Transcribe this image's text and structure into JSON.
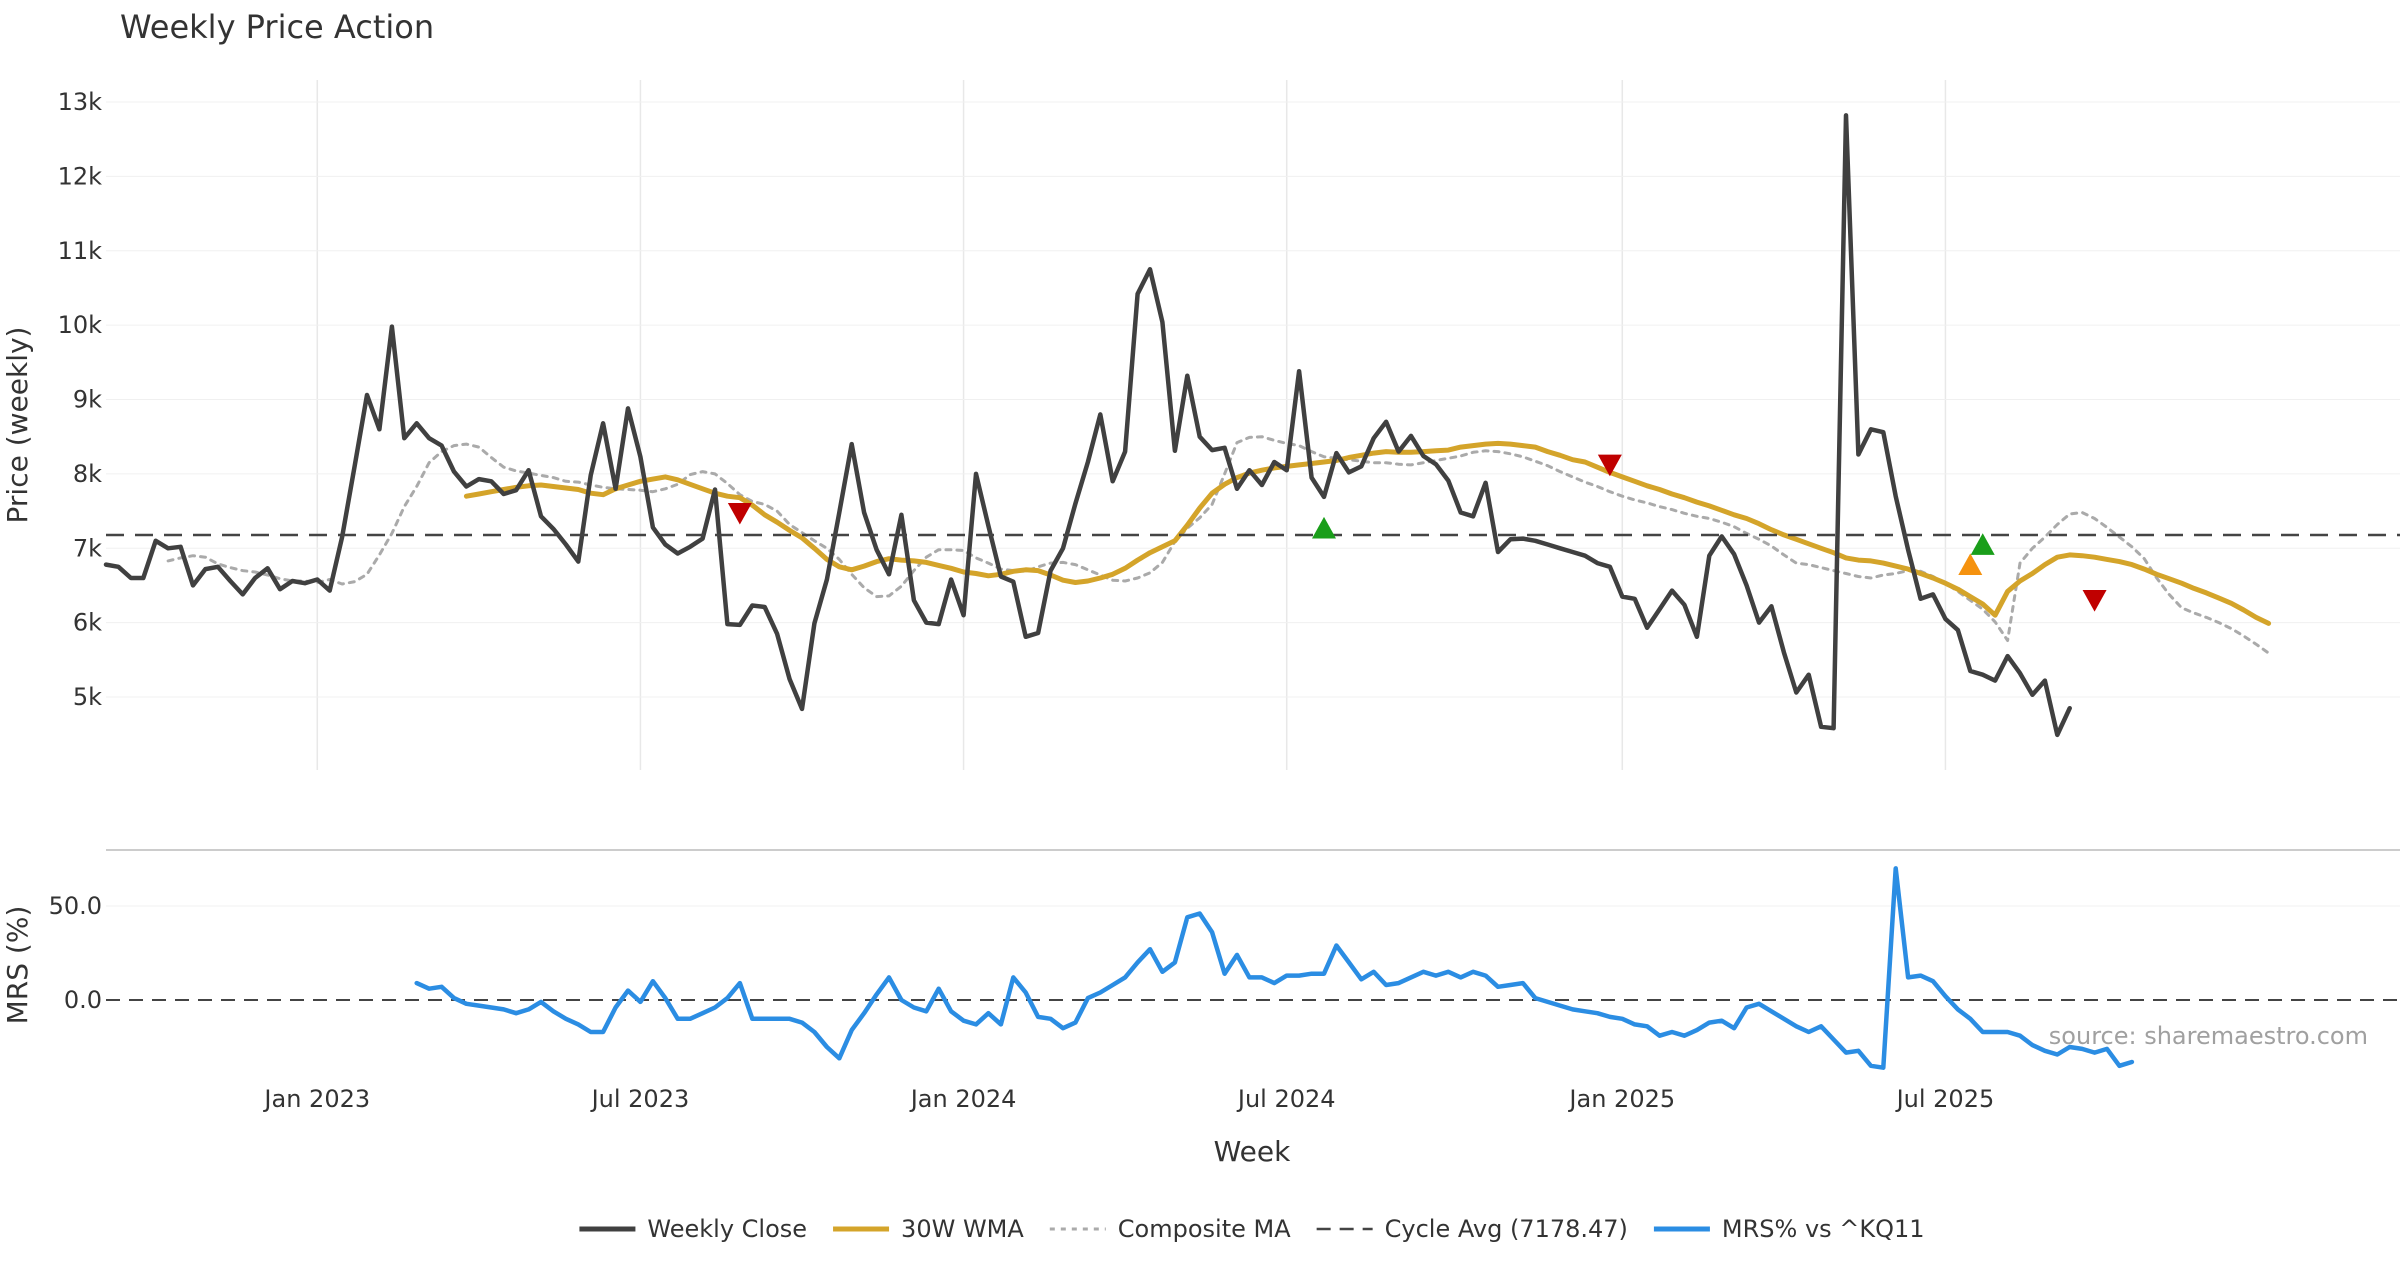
{
  "chart_data": [
    {
      "type": "line",
      "title": "Weekly Price Action",
      "ylabel": "Price (weekly)",
      "ylim": [
        4000,
        13300
      ],
      "yticks": [
        5000,
        6000,
        7000,
        8000,
        9000,
        10000,
        11000,
        12000,
        13000
      ],
      "ytick_labels": [
        "5k",
        "6k",
        "7k",
        "8k",
        "9k",
        "10k",
        "11k",
        "12k",
        "13k"
      ],
      "grid": true,
      "x_start_week": -17,
      "x_unit": "weeks from Jan 2023",
      "series": [
        {
          "name": "Weekly Close",
          "color": "#404040",
          "start": -17,
          "values": [
            6780,
            6750,
            6600,
            6600,
            7100,
            7000,
            7020,
            6500,
            6720,
            6750,
            6560,
            6380,
            6600,
            6730,
            6450,
            6560,
            6530,
            6580,
            6430,
            7150,
            8100,
            9060,
            8600,
            9980,
            8480,
            8680,
            8480,
            8380,
            8030,
            7830,
            7930,
            7900,
            7730,
            7780,
            8050,
            7430,
            7260,
            7050,
            6820,
            7980,
            8680,
            7800,
            8880,
            8230,
            7280,
            7050,
            6930,
            7020,
            7130,
            7790,
            5980,
            5970,
            6230,
            6210,
            5850,
            5240,
            4840,
            5990,
            6580,
            7480,
            8400,
            7480,
            6980,
            6650,
            7450,
            6300,
            6000,
            5980,
            6580,
            6100,
            8000,
            7300,
            6620,
            6550,
            5810,
            5860,
            6700,
            7000,
            7600,
            8160,
            8800,
            7900,
            8300,
            10420,
            10750,
            10040,
            8310,
            9320,
            8500,
            8320,
            8350,
            7800,
            8050,
            7850,
            8160,
            8050,
            9380,
            7950,
            7690,
            8280,
            8020,
            8100,
            8480,
            8700,
            8300,
            8510,
            8240,
            8130,
            7910,
            7480,
            7430,
            7880,
            6950,
            7120,
            7130,
            7100,
            7050,
            7000,
            6950,
            6900,
            6800,
            6750,
            6350,
            6320,
            5930,
            6180,
            6430,
            6240,
            5810,
            6900,
            7160,
            6920,
            6500,
            6000,
            6220,
            5600,
            5060,
            5300,
            4600,
            4580,
            12820,
            8260,
            8600,
            8560,
            7700,
            6980,
            6320,
            6380,
            6050,
            5900,
            5350,
            5300,
            5220,
            5550,
            5320,
            5030,
            5220,
            4490,
            4850
          ]
        },
        {
          "name": "30W WMA",
          "color": "#d4a42a",
          "start": 12,
          "values": [
            7700,
            7730,
            7760,
            7790,
            7820,
            7840,
            7850,
            7830,
            7810,
            7790,
            7740,
            7720,
            7800,
            7850,
            7900,
            7930,
            7960,
            7920,
            7860,
            7800,
            7740,
            7700,
            7680,
            7580,
            7450,
            7350,
            7240,
            7140,
            7000,
            6850,
            6750,
            6710,
            6760,
            6820,
            6860,
            6840,
            6830,
            6810,
            6770,
            6730,
            6680,
            6660,
            6630,
            6650,
            6690,
            6710,
            6700,
            6640,
            6570,
            6540,
            6560,
            6600,
            6650,
            6730,
            6840,
            6940,
            7020,
            7100,
            7310,
            7540,
            7740,
            7860,
            7950,
            8010,
            8050,
            8080,
            8100,
            8120,
            8140,
            8160,
            8180,
            8220,
            8250,
            8280,
            8300,
            8290,
            8290,
            8300,
            8310,
            8320,
            8360,
            8380,
            8400,
            8410,
            8400,
            8380,
            8360,
            8300,
            8250,
            8190,
            8160,
            8090,
            8020,
            7960,
            7900,
            7840,
            7790,
            7730,
            7680,
            7620,
            7570,
            7510,
            7450,
            7400,
            7330,
            7250,
            7180,
            7120,
            7060,
            7000,
            6940,
            6870,
            6840,
            6830,
            6800,
            6760,
            6720,
            6660,
            6600,
            6530,
            6450,
            6350,
            6250,
            6100,
            6420,
            6560,
            6660,
            6780,
            6880,
            6910,
            6900,
            6880,
            6850,
            6820,
            6780,
            6720,
            6650,
            6590,
            6530,
            6460,
            6400,
            6330,
            6260,
            6170,
            6070,
            5990
          ]
        },
        {
          "name": "Composite MA",
          "color": "#aaaaaa",
          "start": -12,
          "values": [
            6830,
            6870,
            6900,
            6880,
            6790,
            6740,
            6700,
            6680,
            6640,
            6590,
            6560,
            6560,
            6540,
            6580,
            6520,
            6550,
            6650,
            6910,
            7200,
            7560,
            7830,
            8150,
            8300,
            8380,
            8400,
            8360,
            8220,
            8090,
            8040,
            8010,
            7980,
            7950,
            7900,
            7890,
            7850,
            7820,
            7800,
            7790,
            7780,
            7760,
            7800,
            7860,
            7990,
            8030,
            8000,
            7870,
            7720,
            7630,
            7590,
            7500,
            7320,
            7210,
            7100,
            7000,
            6850,
            6650,
            6470,
            6350,
            6360,
            6490,
            6700,
            6880,
            6980,
            6980,
            6970,
            6870,
            6800,
            6720,
            6700,
            6690,
            6750,
            6800,
            6810,
            6780,
            6710,
            6640,
            6570,
            6560,
            6600,
            6670,
            6810,
            7090,
            7270,
            7410,
            7590,
            8000,
            8420,
            8490,
            8500,
            8450,
            8410,
            8380,
            8300,
            8230,
            8210,
            8190,
            8170,
            8150,
            8150,
            8130,
            8120,
            8150,
            8180,
            8210,
            8240,
            8290,
            8310,
            8300,
            8270,
            8230,
            8170,
            8110,
            8030,
            7960,
            7890,
            7830,
            7760,
            7700,
            7650,
            7610,
            7560,
            7520,
            7470,
            7430,
            7400,
            7350,
            7290,
            7200,
            7120,
            7030,
            6910,
            6800,
            6780,
            6740,
            6700,
            6660,
            6620,
            6600,
            6640,
            6660,
            6700,
            6690,
            6620,
            6530,
            6420,
            6300,
            6180,
            6010,
            5760,
            6800,
            7000,
            7150,
            7320,
            7460,
            7480,
            7400,
            7280,
            7150,
            7020,
            6860,
            6600,
            6380,
            6200,
            6130,
            6070,
            6000,
            5920,
            5820,
            5710,
            5590
          ]
        },
        {
          "name": "Cycle Avg (7178.47)",
          "color": "#444444",
          "constant": 7178.47
        }
      ],
      "signals": [
        {
          "type": "sell",
          "week": 34,
          "value": 7480,
          "color": "#c00000"
        },
        {
          "type": "buy",
          "week": 81,
          "value": 7260,
          "color": "#1a9e1a"
        },
        {
          "type": "sell",
          "week": 104,
          "value": 8130,
          "color": "#c00000"
        },
        {
          "type": "buy",
          "week": 133,
          "value": 6770,
          "color": "#f5920f"
        },
        {
          "type": "buy",
          "week": 134,
          "value": 7040,
          "color": "#1a9e1a"
        },
        {
          "type": "sell",
          "week": 143,
          "value": 6310,
          "color": "#c00000"
        }
      ]
    },
    {
      "type": "line",
      "ylabel": "MRS (%)",
      "ylim": [
        -45,
        80
      ],
      "yticks": [
        0,
        50
      ],
      "ytick_labels": [
        "0.0",
        "50.0"
      ],
      "xlabel": "Week",
      "x_start_week": -17,
      "x_unit": "weeks from Jan 2023",
      "grid": true,
      "xticks": [
        {
          "label": "Jan 2023",
          "week": 0
        },
        {
          "label": "Jul 2023",
          "week": 26
        },
        {
          "label": "Jan 2024",
          "week": 52
        },
        {
          "label": "Jul 2024",
          "week": 78
        },
        {
          "label": "Jan 2025",
          "week": 105
        },
        {
          "label": "Jul 2025",
          "week": 131
        }
      ],
      "series": [
        {
          "name": "MRS% vs ^KQ11",
          "color": "#2b8de3",
          "start": 8,
          "values": [
            9,
            6,
            7,
            1,
            -2,
            -3,
            -4,
            -5,
            -7,
            -5,
            -1,
            -6,
            -10,
            -13,
            -17,
            -17,
            -4,
            5,
            -1,
            10,
            1,
            -10,
            -10,
            -7,
            -4,
            1,
            9,
            -10,
            -10,
            -10,
            -10,
            -12,
            -17,
            -25,
            -31,
            -16,
            -7,
            3,
            12,
            0,
            -4,
            -6,
            6,
            -6,
            -11,
            -13,
            -7,
            -13,
            12,
            4,
            -9,
            -10,
            -15,
            -12,
            1,
            4,
            8,
            12,
            20,
            27,
            15,
            20,
            44,
            46,
            36,
            14,
            24,
            12,
            12,
            9,
            13,
            13,
            14,
            14,
            29,
            20,
            11,
            15,
            8,
            9,
            12,
            15,
            13,
            15,
            12,
            15,
            13,
            7,
            8,
            9,
            1,
            -1,
            -3,
            -5,
            -6,
            -7,
            -9,
            -10,
            -13,
            -14,
            -19,
            -17,
            -19,
            -16,
            -12,
            -11,
            -15,
            -4,
            -2,
            -6,
            -10,
            -14,
            -17,
            -14,
            -21,
            -28,
            -27,
            -35,
            -36,
            70,
            12,
            13,
            10,
            2,
            -5,
            -10,
            -17,
            -17,
            -17,
            -19,
            -24,
            -27,
            -29,
            -25,
            -26,
            -28,
            -26,
            -35,
            -33
          ]
        }
      ],
      "reference_line": {
        "value": 0,
        "style": "dashed"
      }
    }
  ],
  "legend": [
    {
      "label": "Weekly Close",
      "style": "solid",
      "color": "#404040"
    },
    {
      "label": "30W WMA",
      "style": "solid",
      "color": "#d4a42a"
    },
    {
      "label": "Composite MA",
      "style": "dotted",
      "color": "#aaaaaa"
    },
    {
      "label": "Cycle Avg (7178.47)",
      "style": "dashed",
      "color": "#444444"
    },
    {
      "label": "MRS% vs ^KQ11",
      "style": "solid",
      "color": "#2b8de3"
    }
  ],
  "watermark": "source: sharemaestro.com"
}
